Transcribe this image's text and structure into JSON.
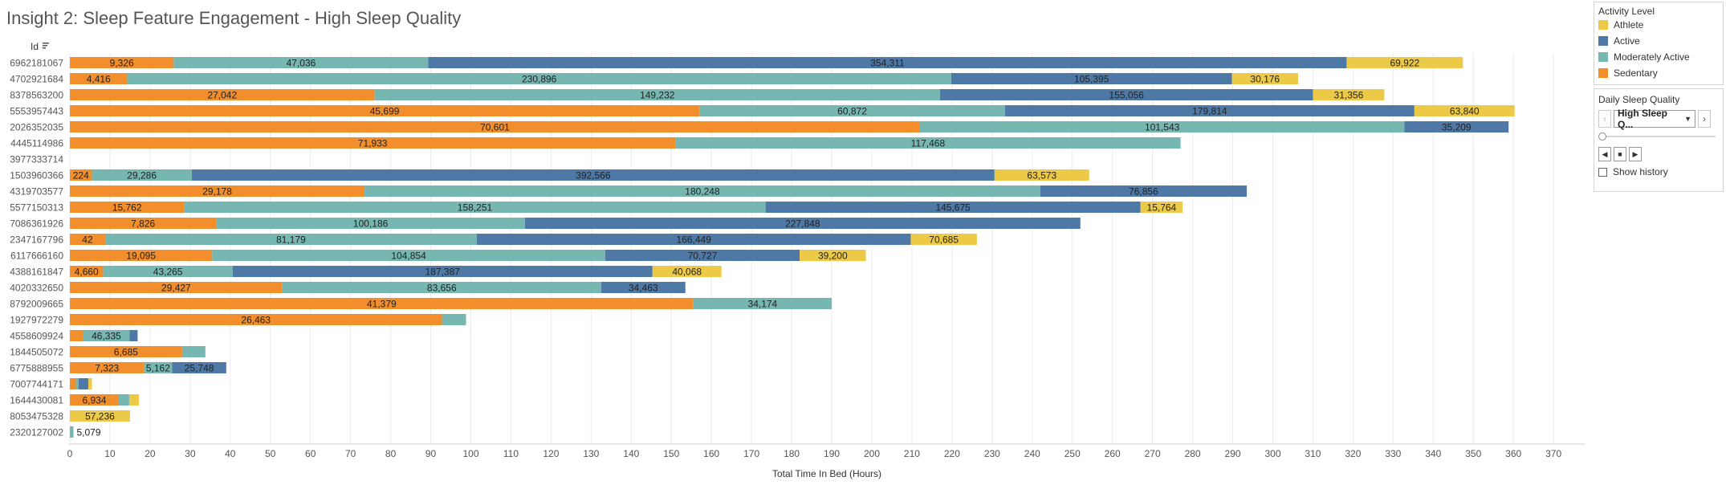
{
  "title": "Insight 2: Sleep Feature Engagement - High Sleep Quality",
  "legend": {
    "title": "Activity Level",
    "items": [
      {
        "label": "Athlete",
        "color": "#EDC948"
      },
      {
        "label": "Active",
        "color": "#4E79A7"
      },
      {
        "label": "Moderately Active",
        "color": "#76B7B2"
      },
      {
        "label": "Sedentary",
        "color": "#F28E2B"
      }
    ]
  },
  "filter": {
    "title": "Daily Sleep Quality",
    "selected": "High Sleep Q...",
    "show_history_label": "Show history"
  },
  "chart_data": {
    "type": "bar",
    "orientation": "horizontal",
    "stacked": true,
    "xlabel": "Total Time In Bed (Hours)",
    "ylabel": "Id",
    "xlim": [
      0,
      380
    ],
    "xticks": [
      0,
      10,
      20,
      30,
      40,
      50,
      60,
      70,
      80,
      90,
      100,
      110,
      120,
      130,
      140,
      150,
      160,
      170,
      180,
      190,
      200,
      210,
      220,
      230,
      240,
      250,
      260,
      270,
      280,
      290,
      300,
      310,
      320,
      330,
      340,
      350,
      360,
      370
    ],
    "grid": true,
    "series_order": [
      "Sedentary",
      "Moderately Active",
      "Active",
      "Athlete"
    ],
    "colors": {
      "Sedentary": "#F28E2B",
      "Moderately Active": "#76B7B2",
      "Active": "#4E79A7",
      "Athlete": "#EDC948"
    },
    "rows": [
      {
        "id": "6962181067",
        "segments": [
          {
            "level": "Sedentary",
            "value": 25.9,
            "label": "9,326"
          },
          {
            "level": "Moderately Active",
            "value": 63.5,
            "label": "47,036"
          },
          {
            "level": "Active",
            "value": 229.0,
            "label": "354,311"
          },
          {
            "level": "Athlete",
            "value": 29.0,
            "label": "69,922"
          }
        ]
      },
      {
        "id": "4702921684",
        "segments": [
          {
            "level": "Sedentary",
            "value": 14.3,
            "label": "4,416"
          },
          {
            "level": "Moderately Active",
            "value": 205.5,
            "label": "230,896"
          },
          {
            "level": "Active",
            "value": 70.0,
            "label": "105,395"
          },
          {
            "level": "Athlete",
            "value": 16.5,
            "label": "30,176"
          }
        ]
      },
      {
        "id": "8378563200",
        "segments": [
          {
            "level": "Sedentary",
            "value": 76.0,
            "label": "27,042"
          },
          {
            "level": "Moderately Active",
            "value": 141.0,
            "label": "149,232"
          },
          {
            "level": "Active",
            "value": 93.0,
            "label": "155,056"
          },
          {
            "level": "Athlete",
            "value": 17.8,
            "label": "31,356"
          }
        ]
      },
      {
        "id": "5553957443",
        "segments": [
          {
            "level": "Sedentary",
            "value": 157.0,
            "label": "45,699"
          },
          {
            "level": "Moderately Active",
            "value": 76.2,
            "label": "60,872"
          },
          {
            "level": "Active",
            "value": 102.1,
            "label": "179,814"
          },
          {
            "level": "Athlete",
            "value": 25.0,
            "label": "63,840"
          }
        ]
      },
      {
        "id": "2026352035",
        "segments": [
          {
            "level": "Sedentary",
            "value": 212.0,
            "label": "70,601"
          },
          {
            "level": "Moderately Active",
            "value": 120.8,
            "label": "101,543"
          },
          {
            "level": "Active",
            "value": 26.0,
            "label": "35,209"
          }
        ]
      },
      {
        "id": "4445114986",
        "segments": [
          {
            "level": "Sedentary",
            "value": 151.0,
            "label": "71,933"
          },
          {
            "level": "Moderately Active",
            "value": 126.0,
            "label": "117,468"
          }
        ]
      },
      {
        "id": "3977333714",
        "segments": []
      },
      {
        "id": "1503960366",
        "segments": [
          {
            "level": "Sedentary",
            "value": 5.5,
            "label": "224"
          },
          {
            "level": "Moderately Active",
            "value": 24.9,
            "label": "29,286"
          },
          {
            "level": "Active",
            "value": 200.2,
            "label": "392,566"
          },
          {
            "level": "Athlete",
            "value": 23.6,
            "label": "63,573"
          }
        ]
      },
      {
        "id": "4319703577",
        "segments": [
          {
            "level": "Sedentary",
            "value": 73.5,
            "label": "29,178"
          },
          {
            "level": "Moderately Active",
            "value": 168.5,
            "label": "180,248"
          },
          {
            "level": "Active",
            "value": 51.5,
            "label": "76,856"
          }
        ]
      },
      {
        "id": "5577150313",
        "segments": [
          {
            "level": "Sedentary",
            "value": 28.5,
            "label": "15,762"
          },
          {
            "level": "Moderately Active",
            "value": 145.0,
            "label": "158,251"
          },
          {
            "level": "Active",
            "value": 93.5,
            "label": "145,675"
          },
          {
            "level": "Athlete",
            "value": 10.5,
            "label": "15,764"
          }
        ]
      },
      {
        "id": "7086361926",
        "segments": [
          {
            "level": "Sedentary",
            "value": 36.5,
            "label": "7,826"
          },
          {
            "level": "Moderately Active",
            "value": 77.0,
            "label": "100,186"
          },
          {
            "level": "Active",
            "value": 138.5,
            "label": "227,848"
          }
        ]
      },
      {
        "id": "2347167796",
        "segments": [
          {
            "level": "Sedentary",
            "value": 8.8,
            "label": "42"
          },
          {
            "level": "Moderately Active",
            "value": 92.7,
            "label": "81,179"
          },
          {
            "level": "Active",
            "value": 108.2,
            "label": "166,449"
          },
          {
            "level": "Athlete",
            "value": 16.5,
            "label": "70,685"
          }
        ]
      },
      {
        "id": "6117666160",
        "segments": [
          {
            "level": "Sedentary",
            "value": 35.5,
            "label": "19,095"
          },
          {
            "level": "Moderately Active",
            "value": 98.0,
            "label": "104,854"
          },
          {
            "level": "Active",
            "value": 48.5,
            "label": "70,727"
          },
          {
            "level": "Athlete",
            "value": 16.5,
            "label": "39,200"
          }
        ]
      },
      {
        "id": "4388161847",
        "segments": [
          {
            "level": "Sedentary",
            "value": 8.3,
            "label": "4,660"
          },
          {
            "level": "Moderately Active",
            "value": 32.3,
            "label": "43,265"
          },
          {
            "level": "Active",
            "value": 104.7,
            "label": "187,387"
          },
          {
            "level": "Athlete",
            "value": 17.2,
            "label": "40,068"
          }
        ]
      },
      {
        "id": "4020332650",
        "segments": [
          {
            "level": "Sedentary",
            "value": 53.0,
            "label": "29,427"
          },
          {
            "level": "Moderately Active",
            "value": 79.5,
            "label": "83,656"
          },
          {
            "level": "Active",
            "value": 21.0,
            "label": "34,463"
          }
        ]
      },
      {
        "id": "8792009665",
        "segments": [
          {
            "level": "Sedentary",
            "value": 155.5,
            "label": "41,379"
          },
          {
            "level": "Moderately Active",
            "value": 34.5,
            "label": "34,174"
          }
        ]
      },
      {
        "id": "1927972279",
        "segments": [
          {
            "level": "Sedentary",
            "value": 92.8,
            "label": "26,463"
          },
          {
            "level": "Moderately Active",
            "value": 6.0,
            "label": ""
          }
        ]
      },
      {
        "id": "4558609924",
        "segments": [
          {
            "level": "Sedentary",
            "value": 3.3,
            "label": ""
          },
          {
            "level": "Moderately Active",
            "value": 11.6,
            "label": "46,335"
          },
          {
            "level": "Active",
            "value": 2.0,
            "label": ""
          }
        ]
      },
      {
        "id": "1844505072",
        "segments": [
          {
            "level": "Sedentary",
            "value": 28.0,
            "label": "6,685"
          },
          {
            "level": "Moderately Active",
            "value": 5.8,
            "label": ""
          }
        ]
      },
      {
        "id": "6775888955",
        "segments": [
          {
            "level": "Sedentary",
            "value": 18.5,
            "label": "7,323"
          },
          {
            "level": "Moderately Active",
            "value": 7.0,
            "label": "5,162"
          },
          {
            "level": "Active",
            "value": 13.5,
            "label": "25,748"
          }
        ]
      },
      {
        "id": "7007744171",
        "segments": [
          {
            "level": "Sedentary",
            "value": 1.5,
            "label": ""
          },
          {
            "level": "Moderately Active",
            "value": 0.7,
            "label": ""
          },
          {
            "level": "Active",
            "value": 2.4,
            "label": ""
          },
          {
            "level": "Athlete",
            "value": 0.9,
            "label": ""
          }
        ]
      },
      {
        "id": "1644430081",
        "segments": [
          {
            "level": "Sedentary",
            "value": 12.2,
            "label": "6,934"
          },
          {
            "level": "Moderately Active",
            "value": 2.6,
            "label": ""
          },
          {
            "level": "Athlete",
            "value": 2.4,
            "label": ""
          }
        ]
      },
      {
        "id": "8053475328",
        "segments": [
          {
            "level": "Athlete",
            "value": 15.0,
            "label": "57,236"
          }
        ]
      },
      {
        "id": "2320127002",
        "segments": [
          {
            "level": "Moderately Active",
            "value": 0.9,
            "label": "5,079",
            "label_outside": true
          }
        ]
      }
    ]
  }
}
